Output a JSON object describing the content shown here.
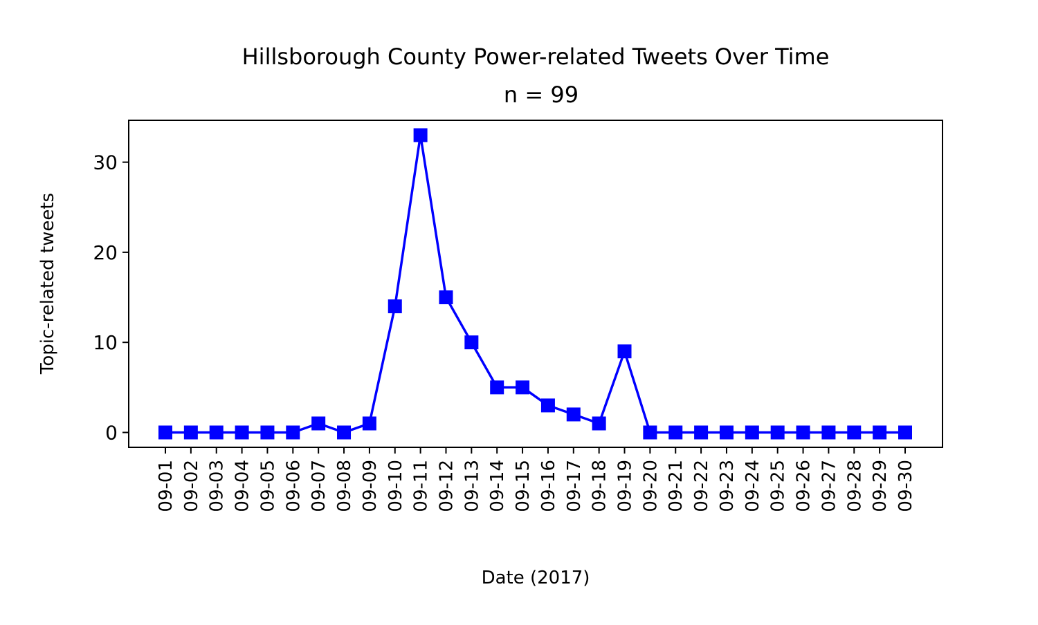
{
  "chart_data": {
    "type": "line",
    "title": "Hillsborough County Power-related Tweets Over Time",
    "subtitle": "n = 99",
    "xlabel": "Date (2017)",
    "ylabel": "Topic-related tweets",
    "categories": [
      "09-01",
      "09-02",
      "09-03",
      "09-04",
      "09-05",
      "09-06",
      "09-07",
      "09-08",
      "09-09",
      "09-10",
      "09-11",
      "09-12",
      "09-13",
      "09-14",
      "09-15",
      "09-16",
      "09-17",
      "09-18",
      "09-19",
      "09-20",
      "09-21",
      "09-22",
      "09-23",
      "09-24",
      "09-25",
      "09-26",
      "09-27",
      "09-28",
      "09-29",
      "09-30"
    ],
    "series": [
      {
        "values": [
          0,
          0,
          0,
          0,
          0,
          0,
          1,
          0,
          1,
          14,
          33,
          15,
          10,
          5,
          5,
          3,
          2,
          1,
          9,
          0,
          0,
          0,
          0,
          0,
          0,
          0,
          0,
          0,
          0,
          0
        ],
        "color": "#0000ff",
        "marker": "square"
      }
    ],
    "ylim": [
      -1.65,
      34.65
    ],
    "yticks": [
      0,
      10,
      20,
      30
    ],
    "grid": false,
    "legend": "none"
  }
}
